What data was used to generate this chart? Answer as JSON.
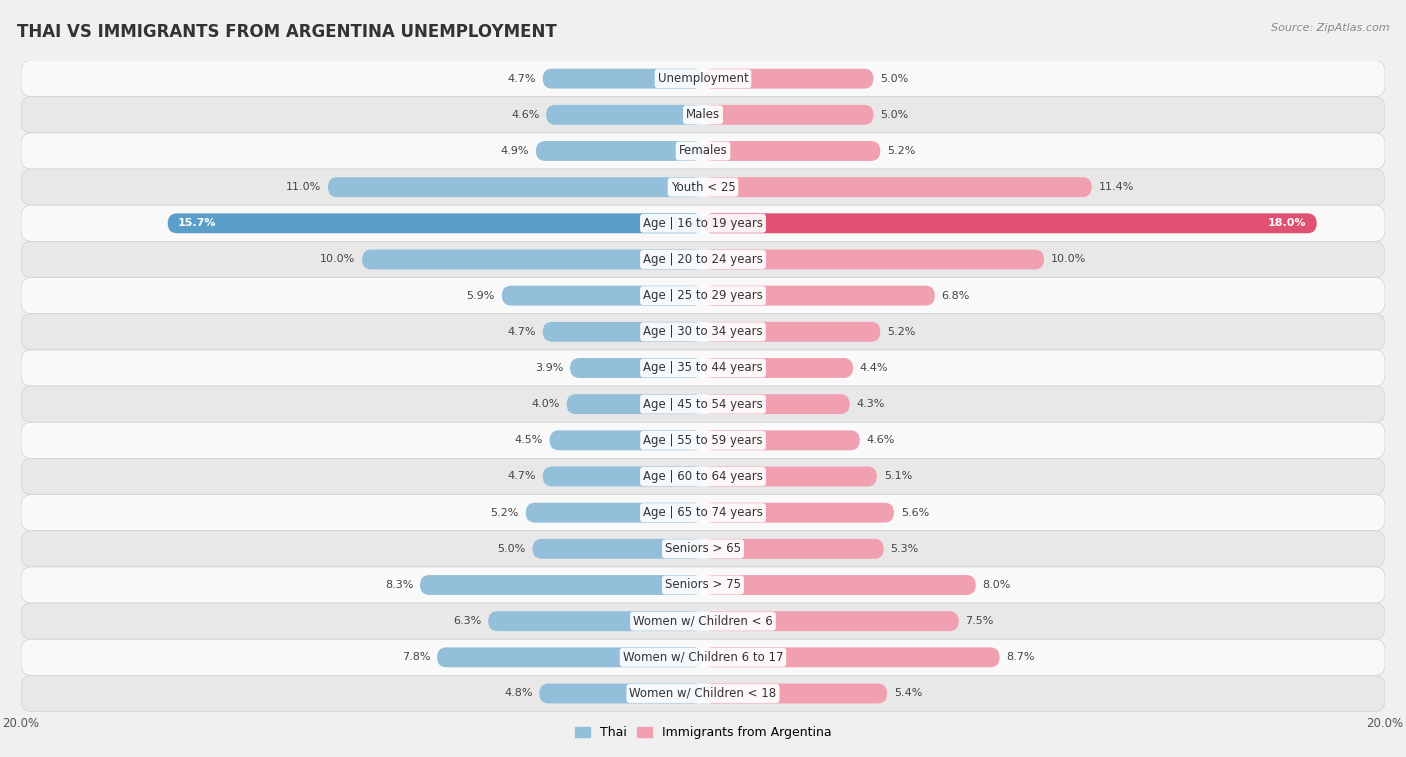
{
  "title": "THAI VS IMMIGRANTS FROM ARGENTINA UNEMPLOYMENT",
  "source": "Source: ZipAtlas.com",
  "categories": [
    "Unemployment",
    "Males",
    "Females",
    "Youth < 25",
    "Age | 16 to 19 years",
    "Age | 20 to 24 years",
    "Age | 25 to 29 years",
    "Age | 30 to 34 years",
    "Age | 35 to 44 years",
    "Age | 45 to 54 years",
    "Age | 55 to 59 years",
    "Age | 60 to 64 years",
    "Age | 65 to 74 years",
    "Seniors > 65",
    "Seniors > 75",
    "Women w/ Children < 6",
    "Women w/ Children 6 to 17",
    "Women w/ Children < 18"
  ],
  "thai_values": [
    4.7,
    4.6,
    4.9,
    11.0,
    15.7,
    10.0,
    5.9,
    4.7,
    3.9,
    4.0,
    4.5,
    4.7,
    5.2,
    5.0,
    8.3,
    6.3,
    7.8,
    4.8
  ],
  "argentina_values": [
    5.0,
    5.0,
    5.2,
    11.4,
    18.0,
    10.0,
    6.8,
    5.2,
    4.4,
    4.3,
    4.6,
    5.1,
    5.6,
    5.3,
    8.0,
    7.5,
    8.7,
    5.4
  ],
  "thai_color": "#94bfda",
  "argentina_color": "#f0a0b0",
  "thai_highlight_color": "#5b9ec9",
  "argentina_highlight_color": "#e05070",
  "bg_color": "#f0f0f0",
  "row_color_light": "#f9f9f9",
  "row_color_dark": "#e8e8e8",
  "row_separator_color": "#d0d0d0",
  "max_value": 20.0,
  "bar_height": 0.55,
  "title_fontsize": 12,
  "label_fontsize": 8.5,
  "value_fontsize": 8,
  "legend_fontsize": 9
}
